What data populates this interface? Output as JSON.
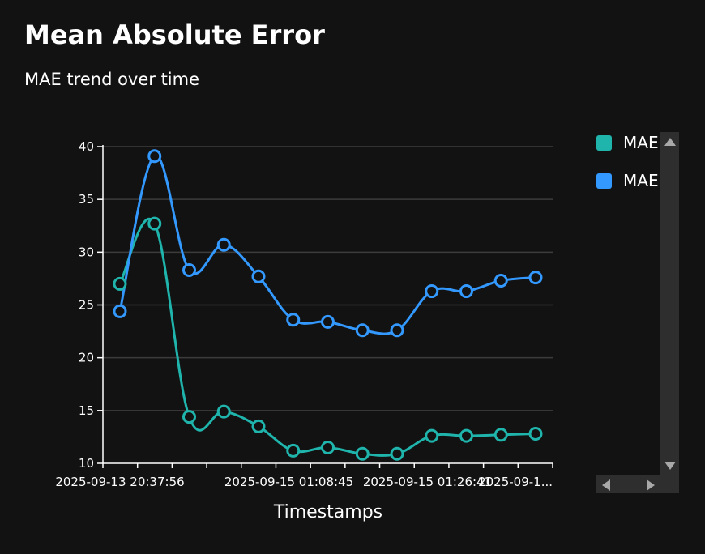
{
  "header": {
    "title": "Mean Absolute Error",
    "subtitle": "MAE trend over time"
  },
  "chart_data": {
    "type": "line",
    "title": "Mean Absolute Error",
    "subtitle": "MAE trend over time",
    "xlabel": "Timestamps",
    "ylabel": "",
    "ylim": [
      10,
      40
    ],
    "yticks": [
      10,
      15,
      20,
      25,
      30,
      35,
      40
    ],
    "grid": true,
    "legend_position": "right",
    "x_tick_labels": [
      "2025-09-13 20:37:56",
      "2025-09-15 01:08:45",
      "2025-09-15 01:26:41",
      "2025-09-1..."
    ],
    "series": [
      {
        "name": "MAE",
        "color": "#1fb5ac",
        "values": [
          27.0,
          32.7,
          14.4,
          14.9,
          13.5,
          11.2,
          11.5,
          10.9,
          10.9,
          12.6,
          12.6,
          12.7,
          12.8
        ]
      },
      {
        "name": "MAE",
        "color": "#3399ff",
        "values": [
          24.4,
          39.1,
          28.3,
          30.7,
          27.7,
          23.6,
          23.4,
          22.6,
          22.6,
          26.3,
          26.3,
          27.3,
          27.6
        ]
      }
    ]
  }
}
